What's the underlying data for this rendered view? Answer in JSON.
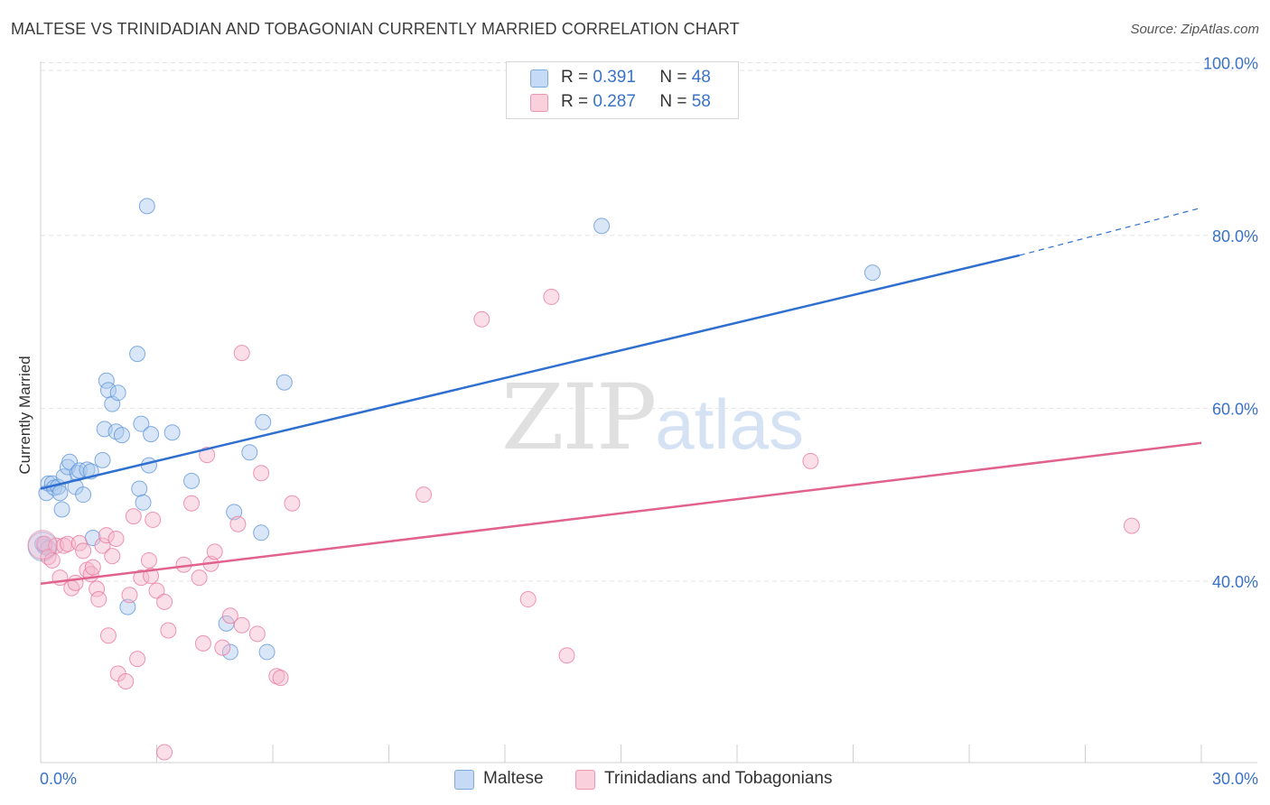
{
  "title": "MALTESE VS TRINIDADIAN AND TOBAGONIAN CURRENTLY MARRIED CORRELATION CHART",
  "source": "Source: ZipAtlas.com",
  "watermark": {
    "zip": "ZIP",
    "atlas": "atlas"
  },
  "legend_top": [
    {
      "r_label": "R =",
      "r_value": "0.391",
      "n_label": "N =",
      "n_value": "48",
      "color": "#a9c8ee"
    },
    {
      "r_label": "R =",
      "r_value": "0.287",
      "n_label": "N =",
      "n_value": "58",
      "color": "#f5b8cb"
    }
  ],
  "chart_data": {
    "type": "scatter",
    "title": "MALTESE VS TRINIDADIAN AND TOBAGONIAN CURRENTLY MARRIED CORRELATION CHART",
    "xlabel": "",
    "ylabel": "Currently Married",
    "xlim": [
      0,
      30
    ],
    "ylim": [
      19,
      102
    ],
    "x_tick_labels": [
      "0.0%",
      "30.0%"
    ],
    "y_ticks": [
      40,
      60,
      80,
      100
    ],
    "y_tick_labels": [
      "40.0%",
      "60.0%",
      "80.0%",
      "100.0%"
    ],
    "grid": true,
    "legend_position": "bottom",
    "series": [
      {
        "name": "Maltese",
        "color": "#5b93d8",
        "fill": "#a9c8ee",
        "trend": {
          "x0": 0,
          "y0": 50.7,
          "x1": 25.3,
          "y1": 77.7,
          "dash_to_x": 30,
          "dash_to_y": 83.2
        },
        "points": [
          [
            0.15,
            50.2
          ],
          [
            0.2,
            51.3
          ],
          [
            0.3,
            51.3
          ],
          [
            0.35,
            50.8
          ],
          [
            0.45,
            50.9
          ],
          [
            0.5,
            50.2
          ],
          [
            0.55,
            48.3
          ],
          [
            0.6,
            52.1
          ],
          [
            0.7,
            53.2
          ],
          [
            0.75,
            53.8
          ],
          [
            0.9,
            50.9
          ],
          [
            0.95,
            52.5
          ],
          [
            1.0,
            52.8
          ],
          [
            1.1,
            50.0
          ],
          [
            1.2,
            52.9
          ],
          [
            1.3,
            52.7
          ],
          [
            1.35,
            45.0
          ],
          [
            1.6,
            54.0
          ],
          [
            1.65,
            57.6
          ],
          [
            1.7,
            63.2
          ],
          [
            1.75,
            62.1
          ],
          [
            1.85,
            60.5
          ],
          [
            1.95,
            57.3
          ],
          [
            2.0,
            61.8
          ],
          [
            2.1,
            56.9
          ],
          [
            2.25,
            37.0
          ],
          [
            2.5,
            66.3
          ],
          [
            2.55,
            50.7
          ],
          [
            2.6,
            58.2
          ],
          [
            2.65,
            49.1
          ],
          [
            2.75,
            83.4
          ],
          [
            2.8,
            53.4
          ],
          [
            2.85,
            57.0
          ],
          [
            3.4,
            57.2
          ],
          [
            3.9,
            51.6
          ],
          [
            4.8,
            35.1
          ],
          [
            4.9,
            31.8
          ],
          [
            5.0,
            48.0
          ],
          [
            5.4,
            54.9
          ],
          [
            5.7,
            45.6
          ],
          [
            5.75,
            58.4
          ],
          [
            5.85,
            31.8
          ],
          [
            6.3,
            63.0
          ],
          [
            14.5,
            81.1
          ],
          [
            21.5,
            75.7
          ],
          [
            0.1,
            44.0
          ],
          [
            0.05,
            44.3
          ],
          [
            0.2,
            43.8
          ]
        ],
        "big_point": [
          0.05,
          44.0
        ]
      },
      {
        "name": "Trinidadians and Tobagonians",
        "color": "#e8769a",
        "fill": "#f5b8cb",
        "trend": {
          "x0": 0,
          "y0": 39.7,
          "x1": 30,
          "y1": 56.0
        },
        "points": [
          [
            0.1,
            44.3
          ],
          [
            0.2,
            42.8
          ],
          [
            0.3,
            42.4
          ],
          [
            0.4,
            44.1
          ],
          [
            0.5,
            40.4
          ],
          [
            0.6,
            44.1
          ],
          [
            0.7,
            44.3
          ],
          [
            0.8,
            39.2
          ],
          [
            0.9,
            39.8
          ],
          [
            1.0,
            44.4
          ],
          [
            1.1,
            43.5
          ],
          [
            1.2,
            41.3
          ],
          [
            1.3,
            40.8
          ],
          [
            1.35,
            41.6
          ],
          [
            1.45,
            39.1
          ],
          [
            1.5,
            37.9
          ],
          [
            1.6,
            44.1
          ],
          [
            1.7,
            45.3
          ],
          [
            1.75,
            33.7
          ],
          [
            1.85,
            42.9
          ],
          [
            1.95,
            44.9
          ],
          [
            2.0,
            29.3
          ],
          [
            2.2,
            28.4
          ],
          [
            2.3,
            38.4
          ],
          [
            2.4,
            47.5
          ],
          [
            2.5,
            31.0
          ],
          [
            2.6,
            40.4
          ],
          [
            2.8,
            42.4
          ],
          [
            2.85,
            40.6
          ],
          [
            2.9,
            47.1
          ],
          [
            3.0,
            38.9
          ],
          [
            3.2,
            37.6
          ],
          [
            3.3,
            34.3
          ],
          [
            3.7,
            41.9
          ],
          [
            3.9,
            49.0
          ],
          [
            4.1,
            40.4
          ],
          [
            4.2,
            32.8
          ],
          [
            4.3,
            54.6
          ],
          [
            4.4,
            42.0
          ],
          [
            4.5,
            43.4
          ],
          [
            4.7,
            32.3
          ],
          [
            4.9,
            36.0
          ],
          [
            5.1,
            46.6
          ],
          [
            5.2,
            34.9
          ],
          [
            5.2,
            66.4
          ],
          [
            5.6,
            33.9
          ],
          [
            5.7,
            52.5
          ],
          [
            6.1,
            29.0
          ],
          [
            6.2,
            28.8
          ],
          [
            6.5,
            49.0
          ],
          [
            9.9,
            50.0
          ],
          [
            11.4,
            70.3
          ],
          [
            12.6,
            37.9
          ],
          [
            13.2,
            72.9
          ],
          [
            13.6,
            31.4
          ],
          [
            19.9,
            53.9
          ],
          [
            28.2,
            46.4
          ],
          [
            3.2,
            20.2
          ]
        ],
        "big_point": [
          0.05,
          44.2
        ]
      }
    ]
  }
}
